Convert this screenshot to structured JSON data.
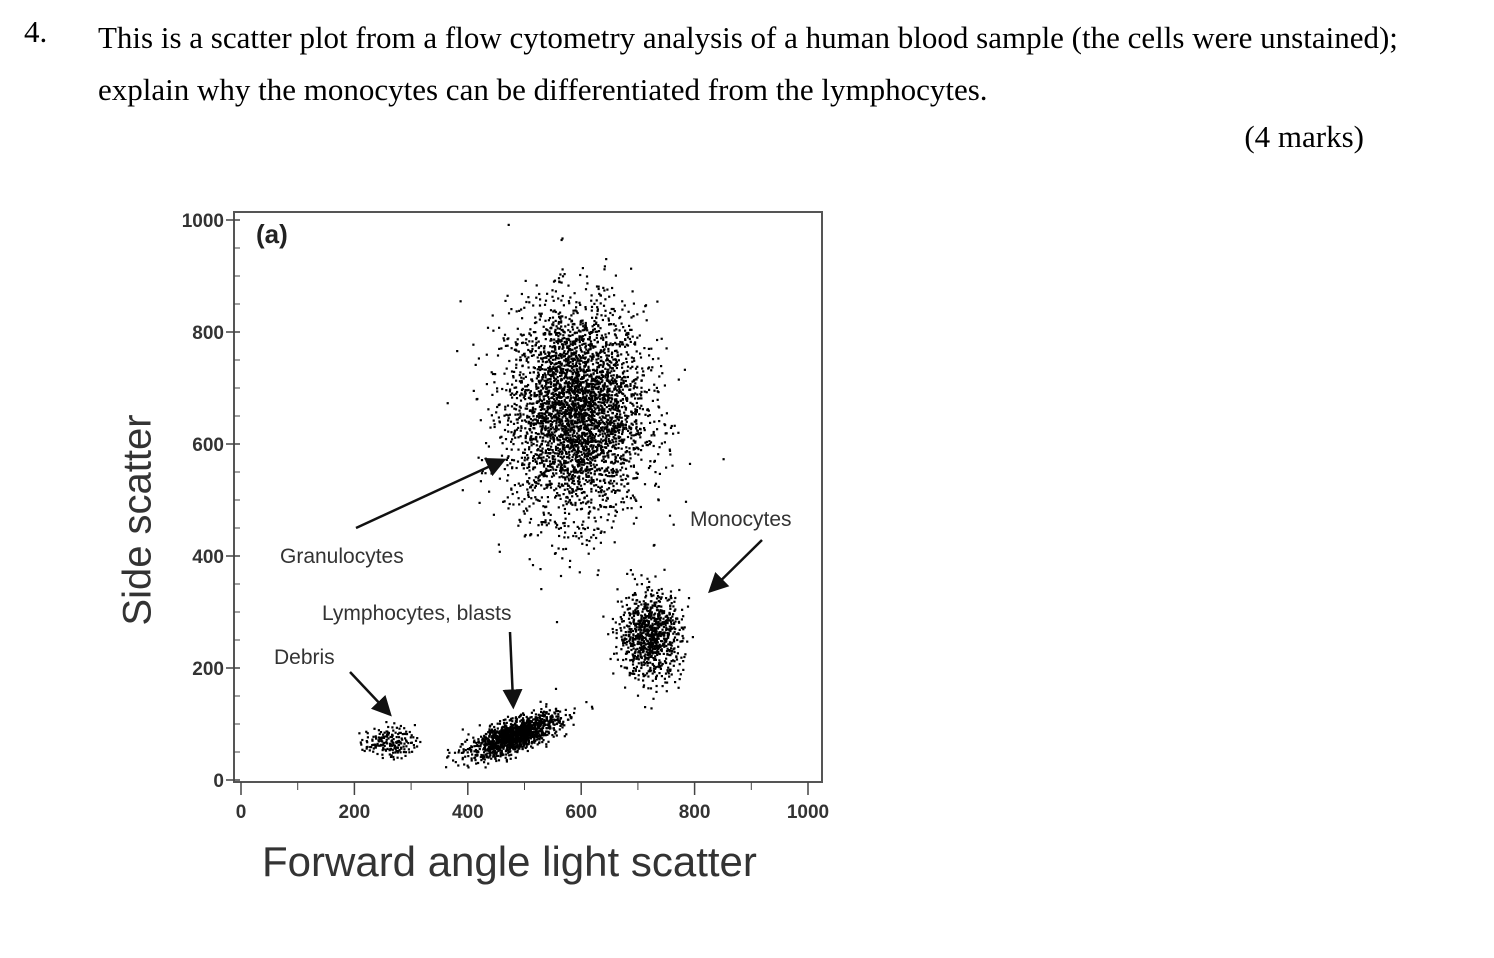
{
  "question": {
    "number": "4.",
    "text": "This is a scatter plot from a flow cytometry analysis of a human blood sample (the cells were unstained); explain why the monocytes can be differentiated from the lymphocytes.",
    "marks": "(4 marks)"
  },
  "chart_data": {
    "type": "scatter",
    "panel_label": "(a)",
    "xlabel": "Forward angle light scatter",
    "ylabel": "Side scatter",
    "xlim": [
      0,
      1000
    ],
    "ylim": [
      0,
      1000
    ],
    "xticks": [
      "0",
      "200",
      "400",
      "600",
      "800",
      "1000"
    ],
    "yticks": [
      "0",
      "200",
      "400",
      "600",
      "800",
      "1000"
    ],
    "clusters": [
      {
        "name": "Granulocytes",
        "center": [
          590,
          660
        ],
        "spread": [
          110,
          170
        ],
        "density": "high"
      },
      {
        "name": "Monocytes",
        "center": [
          720,
          260
        ],
        "spread": [
          50,
          70
        ],
        "density": "medium"
      },
      {
        "name": "Lymphocytes, blasts",
        "center": [
          480,
          80
        ],
        "spread": [
          70,
          25
        ],
        "density": "very high"
      },
      {
        "name": "Debris",
        "center": [
          260,
          70
        ],
        "spread": [
          40,
          25
        ],
        "density": "low"
      }
    ],
    "annotations": [
      {
        "text": "Granulocytes",
        "points_to": [
          460,
          570
        ]
      },
      {
        "text": "Monocytes",
        "points_to": [
          830,
          340
        ]
      },
      {
        "text": "Lymphocytes, blasts",
        "points_to": [
          480,
          135
        ]
      },
      {
        "text": "Debris",
        "points_to": [
          260,
          120
        ]
      }
    ]
  }
}
